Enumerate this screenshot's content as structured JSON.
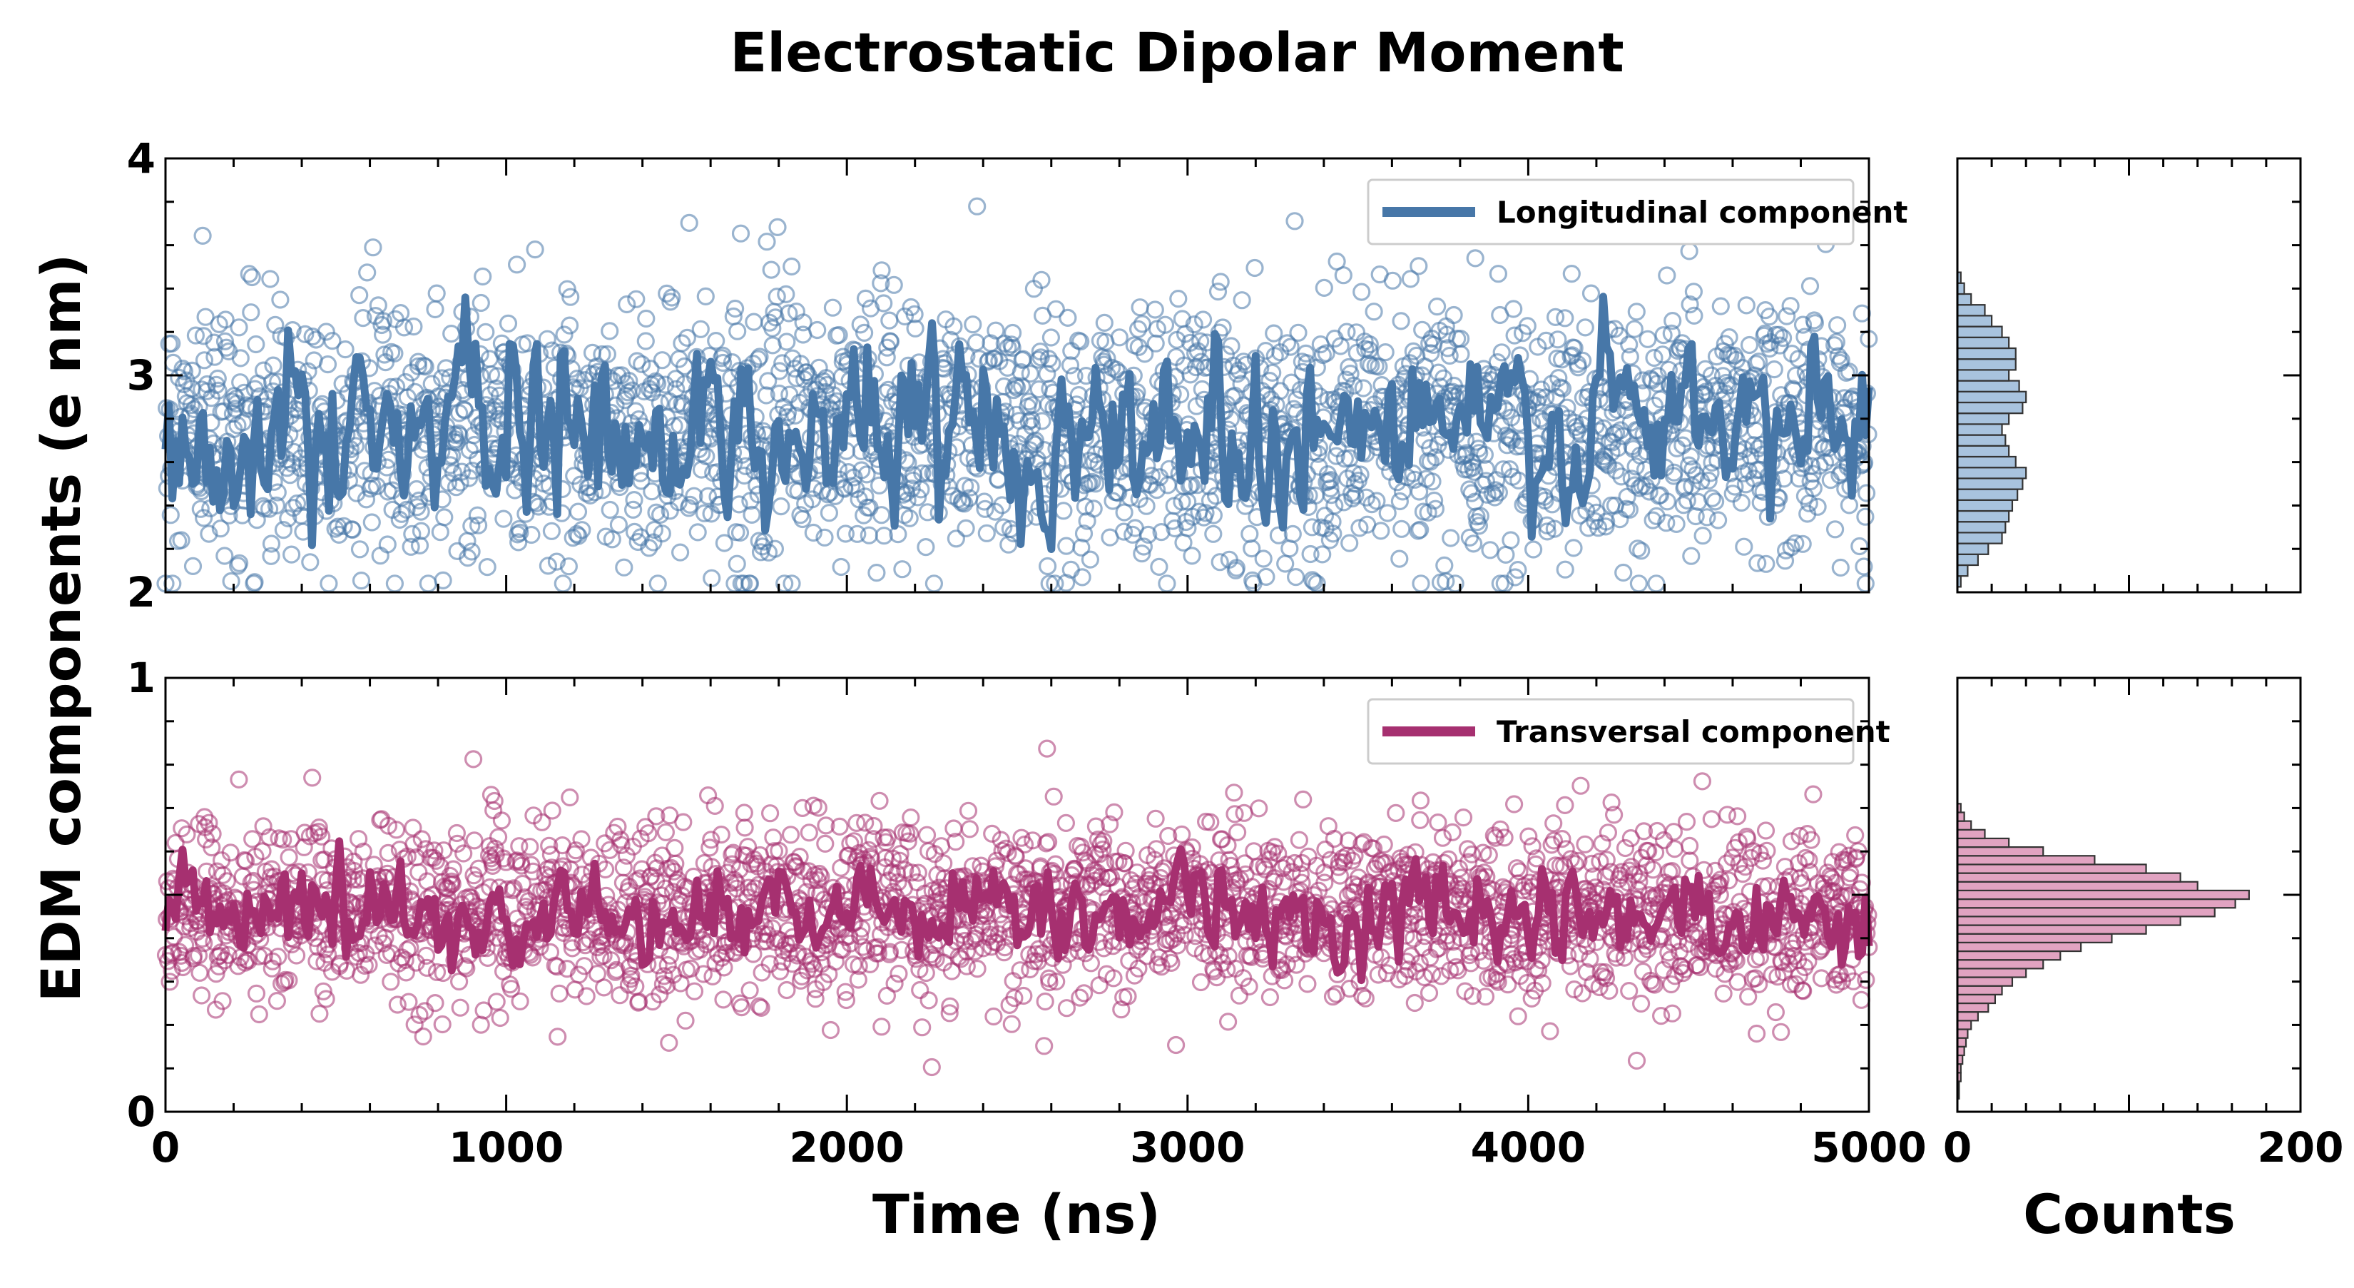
{
  "colors": {
    "longitudinal": "#4777a8",
    "longitudinal_hist": "#a8c3de",
    "transversal": "#a63070",
    "transversal_hist": "#e1a3c1",
    "axes": "#000000"
  },
  "chart_data": {
    "type": "scatter",
    "title": "Electrostatic Dipolar Moment",
    "xlabel": "Time (ns)",
    "ylabel": "EDM components (e nm)",
    "hist_xlabel": "Counts",
    "xlim": [
      0,
      5000
    ],
    "hist_xlim": [
      0,
      200
    ],
    "xticks": [
      "0",
      "1000",
      "2000",
      "3000",
      "4000",
      "5000"
    ],
    "hist_xticks": [
      "0",
      "200"
    ],
    "grid": false,
    "panels": [
      {
        "name": "Longitudinal component",
        "legend_position": "top-right",
        "ylim": [
          2,
          4
        ],
        "yticks": [
          "2",
          "3",
          "4"
        ],
        "scatter_mean": 2.75,
        "scatter_spread": 0.3,
        "running_mean": 2.75,
        "running_amplitude": 0.18,
        "histogram": {
          "bins": [
            2.05,
            2.1,
            2.15,
            2.2,
            2.25,
            2.3,
            2.35,
            2.4,
            2.45,
            2.5,
            2.55,
            2.6,
            2.65,
            2.7,
            2.75,
            2.8,
            2.85,
            2.9,
            2.95,
            3.0,
            3.05,
            3.1,
            3.15,
            3.2,
            3.25,
            3.3,
            3.35,
            3.4,
            3.45
          ],
          "counts": [
            2,
            6,
            12,
            18,
            26,
            28,
            30,
            32,
            35,
            38,
            40,
            34,
            30,
            28,
            26,
            30,
            38,
            40,
            36,
            30,
            34,
            34,
            30,
            26,
            20,
            16,
            8,
            4,
            2
          ]
        }
      },
      {
        "name": "Transversal component",
        "legend_position": "top-right",
        "ylim": [
          0,
          1
        ],
        "yticks": [
          "0",
          "1"
        ],
        "scatter_mean": 0.46,
        "scatter_spread": 0.1,
        "running_mean": 0.45,
        "running_amplitude": 0.05,
        "histogram": {
          "bins": [
            0.04,
            0.06,
            0.08,
            0.1,
            0.12,
            0.14,
            0.16,
            0.18,
            0.2,
            0.22,
            0.24,
            0.26,
            0.28,
            0.3,
            0.32,
            0.34,
            0.36,
            0.38,
            0.4,
            0.42,
            0.44,
            0.46,
            0.48,
            0.5,
            0.52,
            0.54,
            0.56,
            0.58,
            0.6,
            0.62,
            0.64,
            0.66,
            0.68,
            0.7
          ],
          "counts": [
            1,
            1,
            2,
            2,
            3,
            4,
            5,
            6,
            8,
            12,
            18,
            22,
            26,
            32,
            40,
            50,
            60,
            72,
            90,
            110,
            130,
            150,
            162,
            170,
            140,
            130,
            110,
            80,
            50,
            30,
            16,
            8,
            4,
            2
          ]
        }
      }
    ]
  }
}
